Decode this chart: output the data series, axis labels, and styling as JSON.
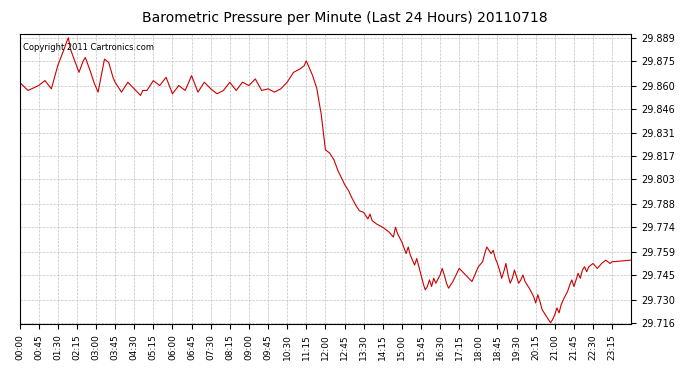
{
  "title": "Barometric Pressure per Minute (Last 24 Hours) 20110718",
  "copyright_text": "Copyright 2011 Cartronics.com",
  "line_color": "#cc0000",
  "bg_color": "#ffffff",
  "plot_bg_color": "#ffffff",
  "grid_color": "#bbbbbb",
  "ylim": [
    29.716,
    29.889
  ],
  "yticks": [
    29.716,
    29.73,
    29.745,
    29.759,
    29.774,
    29.788,
    29.803,
    29.817,
    29.831,
    29.846,
    29.86,
    29.875,
    29.889
  ],
  "xtick_labels": [
    "00:00",
    "00:45",
    "01:30",
    "02:15",
    "03:00",
    "03:45",
    "04:30",
    "05:15",
    "06:00",
    "06:45",
    "07:30",
    "08:15",
    "09:00",
    "09:45",
    "10:30",
    "11:15",
    "12:00",
    "12:45",
    "13:30",
    "14:15",
    "15:00",
    "15:45",
    "16:30",
    "17:15",
    "18:00",
    "18:45",
    "19:30",
    "20:15",
    "21:00",
    "21:45",
    "22:30",
    "23:15"
  ]
}
